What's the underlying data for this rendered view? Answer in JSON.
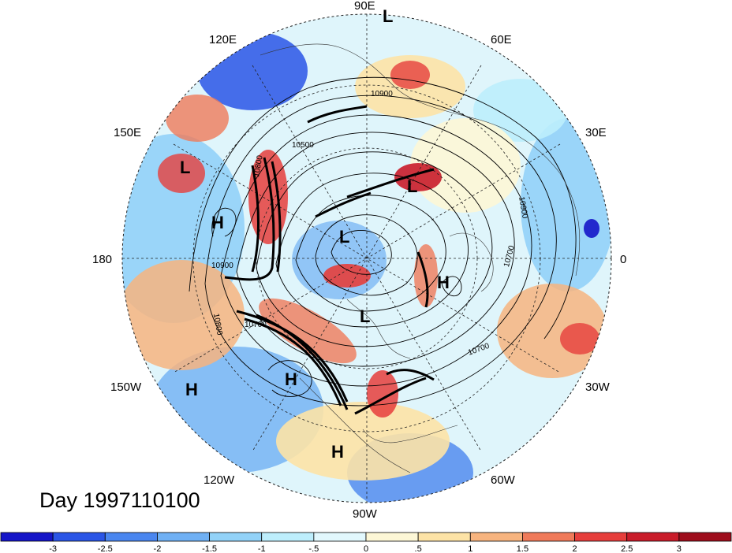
{
  "title": "Day 1997110100",
  "longitude_labels": [
    {
      "text": "90E",
      "pos": "top"
    },
    {
      "text": "60E",
      "pos": "top-right"
    },
    {
      "text": "30E",
      "pos": "upper-right"
    },
    {
      "text": "0",
      "pos": "right"
    },
    {
      "text": "30W",
      "pos": "lower-right"
    },
    {
      "text": "60W",
      "pos": "bottom-right"
    },
    {
      "text": "90W",
      "pos": "bottom"
    },
    {
      "text": "120W",
      "pos": "bottom-left"
    },
    {
      "text": "150W",
      "pos": "lower-left"
    },
    {
      "text": "180",
      "pos": "left"
    },
    {
      "text": "150E",
      "pos": "upper-left"
    },
    {
      "text": "120E",
      "pos": "top-left"
    }
  ],
  "pressure_markers": [
    {
      "text": "L",
      "kind": "low"
    },
    {
      "text": "L",
      "kind": "low"
    },
    {
      "text": "L",
      "kind": "low"
    },
    {
      "text": "L",
      "kind": "low"
    },
    {
      "text": "L",
      "kind": "low"
    },
    {
      "text": "H",
      "kind": "high"
    },
    {
      "text": "H",
      "kind": "high"
    },
    {
      "text": "H",
      "kind": "high"
    },
    {
      "text": "H",
      "kind": "high"
    },
    {
      "text": "H",
      "kind": "high"
    }
  ],
  "contour_labels": [
    "10900",
    "10500",
    "10800",
    "10900",
    "10800",
    "10700",
    "10900",
    "10700",
    "10700"
  ],
  "colorbar": {
    "ticks": [
      "-3",
      "-2.5",
      "-2",
      "-1.5",
      "-1",
      "-.5",
      "0",
      ".5",
      "1",
      "1.5",
      "2",
      "2.5",
      "3"
    ],
    "colors": [
      "#1515c8",
      "#2a55e6",
      "#4a86ef",
      "#6fb0f4",
      "#92d2f8",
      "#bdeefc",
      "#e2f8fd",
      "#fdf7d6",
      "#fde3a6",
      "#f7b47f",
      "#ef7a5a",
      "#e63e3c",
      "#c91c2a",
      "#9e0d1c"
    ]
  }
}
